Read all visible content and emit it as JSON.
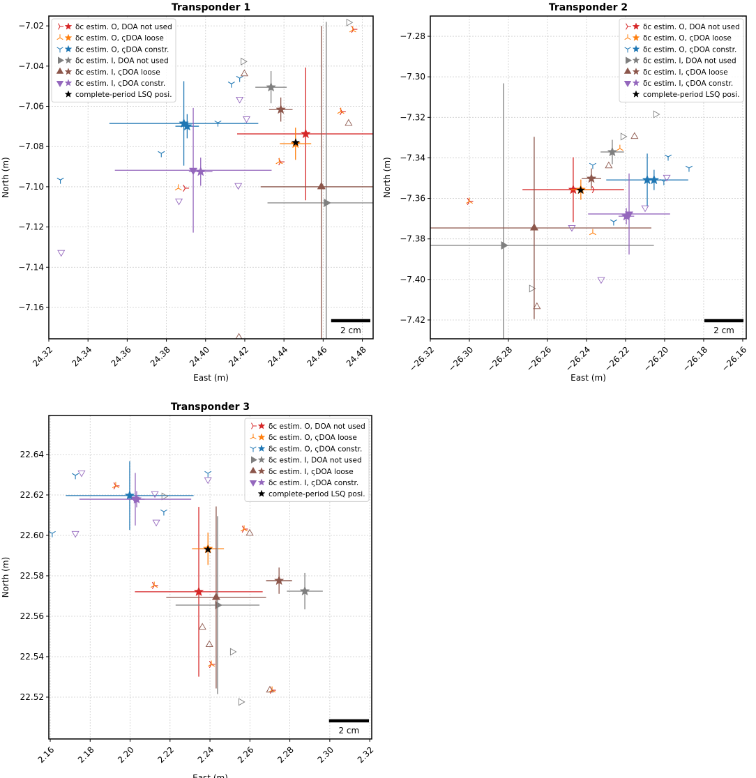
{
  "chart_data": [
    {
      "type": "scatter",
      "title": "Transponder 1",
      "xlabel": "East (m)",
      "ylabel": "North (m)",
      "xlim": [
        24.32,
        24.4855
      ],
      "ylim": [
        -7.1756,
        -7.0151
      ],
      "xticks": [
        24.32,
        24.34,
        24.36,
        24.38,
        {
          "value": 24.4,
          "label": "24.40"
        },
        24.42,
        24.44,
        24.46,
        24.48
      ],
      "yticks": [
        {
          "value": -7.02,
          "label": "−7.02"
        },
        {
          "value": -7.04,
          "label": "−7.04"
        },
        {
          "value": -7.06,
          "label": "−7.06"
        },
        {
          "value": -7.08,
          "label": "−7.08"
        },
        {
          "value": -7.1,
          "label": "−7.10"
        },
        {
          "value": -7.12,
          "label": "−7.12"
        },
        {
          "value": -7.14,
          "label": "−7.14"
        },
        {
          "value": -7.16,
          "label": "−7.16"
        }
      ],
      "grid": true,
      "legend": "upper left",
      "scalebar": {
        "label": "2 cm",
        "length": 0.02
      },
      "series": [
        {
          "name": "δc estim. O, DOA not used",
          "color": "#d62728",
          "marker": "tri-right",
          "x": [
            24.3896,
            24.4755,
            24.4696,
            24.4383
          ],
          "values": [
            -7.1007,
            -7.0217,
            -7.0626,
            -7.0876
          ],
          "estimates": [
            {
              "x": 24.4511,
              "y": -7.0737,
              "xerr": 0.035,
              "yerr": 0.033,
              "marker": "star"
            }
          ]
        },
        {
          "name": "δc estim. O, ςDOA loose",
          "color": "#ff7f0e",
          "marker": "tri-up",
          "x": [
            24.3861,
            24.4751,
            24.469,
            24.4376
          ],
          "values": [
            -7.1007,
            -7.0221,
            -7.0626,
            -7.0876
          ],
          "estimates": [
            {
              "x": 24.4459,
              "y": -7.0786,
              "xerr": 0.008,
              "yerr": 0.008,
              "marker": "star"
            }
          ]
        },
        {
          "name": "δc estim. O, ςDOA constr.",
          "color": "#1f77b4",
          "marker": "tri-down",
          "x": [
            24.3259,
            24.3774,
            24.4063,
            24.4132,
            24.4174
          ],
          "values": [
            -7.0966,
            -7.0834,
            -7.0682,
            -7.0488,
            -7.046
          ],
          "estimates": [
            {
              "x": 24.3889,
              "y": -7.0685,
              "xerr": 0.038,
              "yerr": 0.021,
              "marker": "star"
            },
            {
              "x": 24.3906,
              "y": -7.0699,
              "xerr": 0.006,
              "yerr": 0.006,
              "marker": "star"
            }
          ]
        },
        {
          "name": "δc estim. I, DOA not used",
          "color": "#7f7f7f",
          "marker": "triangle-right",
          "x": [
            24.473,
            24.4191
          ],
          "values": [
            -7.0183,
            -7.0377
          ],
          "estimates": [
            {
              "x": 24.4334,
              "y": -7.0505,
              "xerr": 0.008,
              "yerr": 0.008,
              "marker": "star"
            },
            {
              "x": 24.4616,
              "y": -7.108,
              "xerr": 0.03,
              "yerr": 0.09,
              "marker": "triangle-right"
            }
          ]
        },
        {
          "name": "δc estim. I, ςDOA loose",
          "color": "#8c564b",
          "marker": "triangle-up",
          "x": [
            24.4198,
            24.473,
            24.417
          ],
          "values": [
            -7.0439,
            -7.0685,
            -7.1749
          ],
          "estimates": [
            {
              "x": 24.4384,
              "y": -7.0616,
              "xerr": 0.006,
              "yerr": 0.006,
              "marker": "star"
            },
            {
              "x": 24.4591,
              "y": -7.1,
              "xerr": 0.031,
              "yerr": 0.08,
              "marker": "triangle-up"
            }
          ]
        },
        {
          "name": "δc estim. I, ςDOA constr.",
          "color": "#9467bd",
          "marker": "triangle-down",
          "x": [
            24.3263,
            24.3864,
            24.4167,
            24.4174,
            24.4209
          ],
          "values": [
            -7.1326,
            -7.107,
            -7.0993,
            -7.0564,
            -7.0661
          ],
          "estimates": [
            {
              "x": 24.3975,
              "y": -7.0925,
              "xerr": 0.006,
              "yerr": 0.007,
              "marker": "star"
            },
            {
              "x": 24.3937,
              "y": -7.0918,
              "xerr": 0.04,
              "yerr": 0.031,
              "marker": "triangle-down"
            }
          ]
        },
        {
          "name": "complete-period LSQ posi.",
          "color": "#000000",
          "marker": "star",
          "x": [
            24.446
          ],
          "values": [
            -7.078
          ],
          "estimates": []
        }
      ]
    },
    {
      "type": "scatter",
      "title": "Transponder 2",
      "xlabel": "East (m)",
      "ylabel": "North (m)",
      "xlim": [
        -26.32,
        -26.1582
      ],
      "ylim": [
        -7.4293,
        -7.27
      ],
      "xticks": [
        {
          "value": -26.32,
          "label": "−26.32"
        },
        {
          "value": -26.3,
          "label": "−26.30"
        },
        {
          "value": -26.28,
          "label": "−26.28"
        },
        {
          "value": -26.26,
          "label": "−26.26"
        },
        {
          "value": -26.24,
          "label": "−26.24"
        },
        {
          "value": -26.22,
          "label": "−26.22"
        },
        {
          "value": -26.2,
          "label": "−26.20"
        },
        {
          "value": -26.18,
          "label": "−26.18"
        },
        {
          "value": -26.16,
          "label": "−26.16"
        }
      ],
      "yticks": [
        {
          "value": -7.28,
          "label": "−7.28"
        },
        {
          "value": -7.3,
          "label": "−7.30"
        },
        {
          "value": -7.32,
          "label": "−7.32"
        },
        {
          "value": -7.34,
          "label": "−7.34"
        },
        {
          "value": -7.36,
          "label": "−7.36"
        },
        {
          "value": -7.38,
          "label": "−7.38"
        },
        {
          "value": -7.4,
          "label": "−7.40"
        },
        {
          "value": -7.42,
          "label": "−7.42"
        }
      ],
      "grid": true,
      "legend": "upper right",
      "scalebar": {
        "label": "2 cm",
        "length": 0.02
      },
      "series": [
        {
          "name": "δc estim. O, DOA not used",
          "color": "#d62728",
          "marker": "tri-right",
          "x": [
            -26.3,
            -26.2361
          ],
          "values": [
            -7.3615,
            -7.3557
          ],
          "estimates": [
            {
              "x": -26.2468,
              "y": -7.3557,
              "xerr": 0.026,
              "yerr": 0.016,
              "marker": "star"
            }
          ]
        },
        {
          "name": "δc estim. O, ςDOA loose",
          "color": "#ff7f0e",
          "marker": "tri-up",
          "x": [
            -26.3,
            -26.2368,
            -26.2229
          ],
          "values": [
            -7.3615,
            -7.377,
            -7.3354
          ],
          "estimates": [
            {
              "x": -26.2429,
              "y": -7.3557,
              "xerr": 0.005,
              "yerr": 0.005,
              "marker": "star"
            }
          ]
        },
        {
          "name": "δc estim. O, ςDOA constr.",
          "color": "#1f77b4",
          "marker": "tri-down",
          "x": [
            -26.2368,
            -26.1982,
            -26.1875,
            -26.2261,
            -26.2004
          ],
          "values": [
            -7.3436,
            -7.3395,
            -7.345,
            -7.3715,
            -7.3516
          ],
          "estimates": [
            {
              "x": -26.2089,
              "y": -7.3509,
              "xerr": 0.021,
              "yerr": 0.013,
              "marker": "star"
            },
            {
              "x": -26.2054,
              "y": -7.3509,
              "xerr": 0.005,
              "yerr": 0.005,
              "marker": "star"
            }
          ]
        },
        {
          "name": "δc estim. I, DOA not used",
          "color": "#7f7f7f",
          "marker": "triangle-right",
          "x": [
            -26.2046,
            -26.2214,
            -26.2682
          ],
          "values": [
            -7.3185,
            -7.3295,
            -7.4045
          ],
          "estimates": [
            {
              "x": -26.2268,
              "y": -7.3371,
              "xerr": 0.006,
              "yerr": 0.006,
              "marker": "star"
            },
            {
              "x": -26.2825,
              "y": -7.3832,
              "xerr": 0.077,
              "yerr": 0.08,
              "marker": "triangle-right"
            }
          ]
        },
        {
          "name": "δc estim. I, ςDOA loose",
          "color": "#8c564b",
          "marker": "triangle-up",
          "x": [
            -26.2154,
            -26.2286,
            -26.2654
          ],
          "values": [
            -7.3295,
            -7.344,
            -7.4135
          ],
          "estimates": [
            {
              "x": -26.2375,
              "y": -7.3502,
              "xerr": 0.005,
              "yerr": 0.005,
              "marker": "star"
            },
            {
              "x": -26.2668,
              "y": -7.3746,
              "xerr": 0.06,
              "yerr": 0.045,
              "marker": "triangle-up"
            }
          ]
        },
        {
          "name": "δc estim. I, ςDOA constr.",
          "color": "#9467bd",
          "marker": "triangle-down",
          "x": [
            -26.2475,
            -26.2325,
            -26.21,
            -26.1989
          ],
          "values": [
            -7.3743,
            -7.4,
            -7.3646,
            -7.3495
          ],
          "estimates": [
            {
              "x": -26.2196,
              "y": -7.3688,
              "xerr": 0.004,
              "yerr": 0.004,
              "marker": "star"
            },
            {
              "x": -26.2182,
              "y": -7.3677,
              "xerr": 0.021,
              "yerr": 0.02,
              "marker": "triangle-down"
            }
          ]
        },
        {
          "name": "complete-period LSQ posi.",
          "color": "#000000",
          "marker": "star",
          "x": [
            -26.243
          ],
          "values": [
            -7.356
          ],
          "estimates": []
        }
      ]
    },
    {
      "type": "scatter",
      "title": "Transponder 3",
      "xlabel": "East (m)",
      "ylabel": "North (m)",
      "xlim": [
        2.1593,
        2.321
      ],
      "ylim": [
        22.4993,
        22.6593
      ],
      "xticks": [
        2.16,
        2.18,
        {
          "value": 2.2,
          "label": "2.20"
        },
        2.22,
        2.24,
        2.26,
        2.28,
        {
          "value": 2.3,
          "label": "2.30"
        },
        2.32
      ],
      "yticks": [
        22.52,
        22.54,
        22.56,
        22.58,
        {
          "value": 22.6,
          "label": "22.60"
        },
        22.62,
        22.64
      ],
      "grid": true,
      "legend": "upper right",
      "scalebar": {
        "label": "2 cm",
        "length": 0.02
      },
      "series": [
        {
          "name": "δc estim. O, DOA not used",
          "color": "#d62728",
          "marker": "tri-right",
          "x": [
            2.1928,
            2.2121,
            2.2407,
            2.2711,
            2.2571
          ],
          "values": [
            22.6245,
            22.5752,
            22.5362,
            22.5234,
            22.6031
          ],
          "estimates": [
            {
              "x": 2.2344,
              "y": 22.5721,
              "xerr": 0.032,
              "yerr": 0.042,
              "marker": "star"
            }
          ]
        },
        {
          "name": "δc estim. O, ςDOA loose",
          "color": "#ff7f0e",
          "marker": "tri-up",
          "x": [
            2.1928,
            2.2121,
            2.2407,
            2.2711,
            2.2571
          ],
          "values": [
            22.6245,
            22.5752,
            22.5362,
            22.5234,
            22.6031
          ],
          "estimates": [
            {
              "x": 2.239,
              "y": 22.5934,
              "xerr": 0.008,
              "yerr": 0.008,
              "marker": "star"
            }
          ]
        },
        {
          "name": "δc estim. O, ςDOA constr.",
          "color": "#1f77b4",
          "marker": "tri-down",
          "x": [
            2.161,
            2.1726,
            2.2169,
            2.239
          ],
          "values": [
            22.601,
            22.6297,
            22.6117,
            22.6307
          ],
          "estimates": [
            {
              "x": 2.1998,
              "y": 22.6197,
              "xerr": 0.032,
              "yerr": 0.017,
              "marker": "star"
            }
          ]
        },
        {
          "name": "δc estim. I, DOA not used",
          "color": "#7f7f7f",
          "marker": "triangle-right",
          "x": [
            2.2169,
            2.2512,
            2.2554
          ],
          "values": [
            22.6193,
            22.5424,
            22.5176
          ],
          "estimates": [
            {
              "x": 2.2875,
              "y": 22.5724,
              "xerr": 0.009,
              "yerr": 0.009,
              "marker": "star"
            },
            {
              "x": 2.2438,
              "y": 22.5655,
              "xerr": 0.021,
              "yerr": 0.044,
              "marker": "triangle-right"
            }
          ]
        },
        {
          "name": "δc estim. I, ςDOA loose",
          "color": "#8c564b",
          "marker": "triangle-up",
          "x": [
            2.2362,
            2.2397,
            2.2599,
            2.27
          ],
          "values": [
            22.5545,
            22.5459,
            22.601,
            22.5234
          ],
          "estimates": [
            {
              "x": 2.2746,
              "y": 22.5776,
              "xerr": 0.0065,
              "yerr": 0.0065,
              "marker": "star"
            },
            {
              "x": 2.2431,
              "y": 22.5693,
              "xerr": 0.025,
              "yerr": 0.045,
              "marker": "triangle-up"
            }
          ]
        },
        {
          "name": "δc estim. I, ςDOA constr.",
          "color": "#9467bd",
          "marker": "triangle-down",
          "x": [
            2.1726,
            2.1757,
            2.2131,
            2.239,
            2.2124
          ],
          "values": [
            22.601,
            22.631,
            22.6066,
            22.6276,
            22.6207
          ],
          "estimates": [
            {
              "x": 2.2033,
              "y": 22.6179,
              "xerr": 0.004,
              "yerr": 0.004,
              "marker": "star"
            },
            {
              "x": 2.2026,
              "y": 22.6179,
              "xerr": 0.028,
              "yerr": 0.013,
              "marker": "triangle-down"
            }
          ]
        },
        {
          "name": "complete-period LSQ posi.",
          "color": "#000000",
          "marker": "star",
          "x": [
            2.239
          ],
          "values": [
            22.593
          ],
          "estimates": []
        }
      ]
    }
  ]
}
